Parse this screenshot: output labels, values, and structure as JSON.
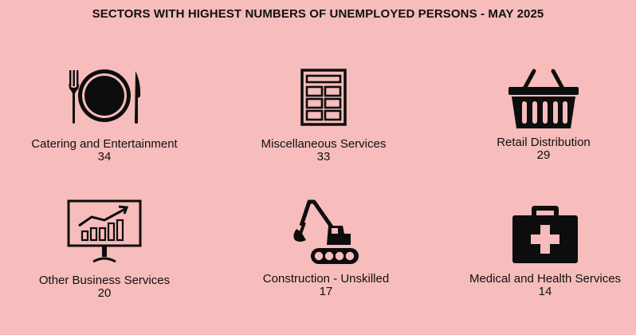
{
  "chart_data": {
    "type": "table",
    "title": "SECTORS WITH HIGHEST NUMBERS OF UNEMPLOYED PERSONS - MAY 2025",
    "categories": [
      "Catering and Entertainment",
      "Miscellaneous Services",
      "Retail Distribution",
      "Other Business Services",
      "Construction - Unskilled",
      "Medical and Health Services"
    ],
    "values": [
      34,
      33,
      29,
      20,
      17,
      14
    ],
    "items": [
      {
        "icon": "dining-icon",
        "label": "Catering and Entertainment",
        "value": "34"
      },
      {
        "icon": "office-building-icon",
        "label": "Miscellaneous Services",
        "value": "33"
      },
      {
        "icon": "shopping-basket-icon",
        "label": "Retail Distribution",
        "value": "29"
      },
      {
        "icon": "monitor-chart-icon",
        "label": "Other Business Services",
        "value": "20"
      },
      {
        "icon": "excavator-icon",
        "label": "Construction - Unskilled",
        "value": "17"
      },
      {
        "icon": "medical-kit-icon",
        "label": "Medical and Health Services",
        "value": "14"
      }
    ]
  },
  "colors": {
    "background": "#f7bcbc",
    "icon": "#0d0d0d"
  }
}
